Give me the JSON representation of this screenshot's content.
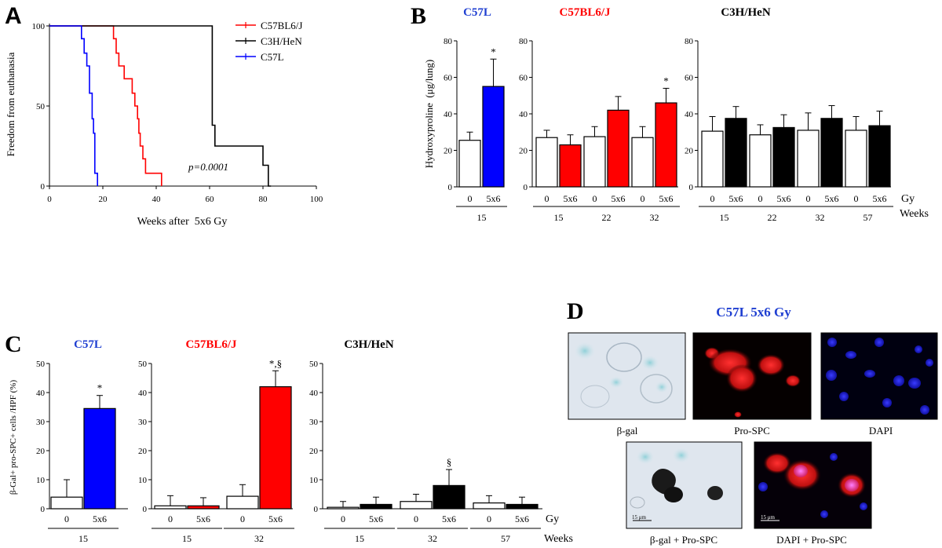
{
  "colors": {
    "blue": "#0000ff",
    "red": "#ff0000",
    "black": "#000000",
    "panel_title_blue": "#1f3fd1"
  },
  "panel_labels": {
    "A": "A",
    "B": "B",
    "C": "C",
    "D": "D"
  },
  "common": {
    "star": "*",
    "star_section": "* ,§",
    "section": "§",
    "gy": "Gy",
    "weeks": "Weeks",
    "dose0": "0",
    "dose5": "5x6"
  },
  "chart_data": [
    {
      "id": "A",
      "type": "line",
      "subtype": "kaplan-meier",
      "xlabel": "Weeks after  5x6 Gy",
      "ylabel": "Freedom from euthanasia",
      "xlim": [
        0,
        100
      ],
      "ylim": [
        0,
        100
      ],
      "xticks": [
        "0",
        "20",
        "40",
        "60",
        "80",
        "100"
      ],
      "yticks": [
        "0",
        "50",
        "100"
      ],
      "annotation": "p=0.0001",
      "legend": "top-right",
      "series": [
        {
          "name": "C57BL6/J",
          "color": "#ff0000",
          "points": [
            [
              0,
              100
            ],
            [
              24,
              100
            ],
            [
              24,
              92
            ],
            [
              25,
              92
            ],
            [
              25,
              83
            ],
            [
              26,
              83
            ],
            [
              26,
              75
            ],
            [
              28,
              75
            ],
            [
              28,
              67
            ],
            [
              31,
              67
            ],
            [
              31,
              58
            ],
            [
              32,
              58
            ],
            [
              32,
              50
            ],
            [
              33,
              50
            ],
            [
              33,
              42
            ],
            [
              33.5,
              42
            ],
            [
              33.5,
              33
            ],
            [
              34,
              33
            ],
            [
              34,
              25
            ],
            [
              35,
              25
            ],
            [
              35,
              17
            ],
            [
              36,
              17
            ],
            [
              36,
              8
            ],
            [
              42,
              8
            ],
            [
              42,
              0
            ]
          ]
        },
        {
          "name": "C3H/HeN",
          "color": "#000000",
          "points": [
            [
              0,
              100
            ],
            [
              61,
              100
            ],
            [
              61,
              38
            ],
            [
              62,
              38
            ],
            [
              62,
              25
            ],
            [
              80,
              25
            ],
            [
              80,
              13
            ],
            [
              82,
              13
            ],
            [
              82,
              0
            ],
            [
              83,
              0
            ]
          ]
        },
        {
          "name": "C57L",
          "color": "#0000ff",
          "points": [
            [
              0,
              100
            ],
            [
              12,
              100
            ],
            [
              12,
              92
            ],
            [
              13,
              92
            ],
            [
              13,
              83
            ],
            [
              14,
              83
            ],
            [
              14,
              75
            ],
            [
              15,
              75
            ],
            [
              15,
              58
            ],
            [
              16,
              58
            ],
            [
              16,
              42
            ],
            [
              16.5,
              42
            ],
            [
              16.5,
              33
            ],
            [
              17,
              33
            ],
            [
              17,
              8
            ],
            [
              18,
              8
            ],
            [
              18,
              0
            ]
          ]
        }
      ]
    },
    {
      "id": "B",
      "type": "bar",
      "ylabel": "Hydroxyproline  (μg/lung)",
      "ylim": [
        0,
        80
      ],
      "yticks": [
        "0",
        "20",
        "40",
        "60",
        "80"
      ],
      "groups": [
        {
          "title": "C57L",
          "title_color": "blue",
          "fill": "#0000ff",
          "weeks": [
            "15"
          ],
          "values": [
            [
              25.5,
              55
            ]
          ],
          "errors": [
            [
              4.5,
              15
            ]
          ],
          "marks": [
            [
              "",
              "*"
            ]
          ]
        },
        {
          "title": "C57BL6/J",
          "title_color": "red",
          "fill": "#ff0000",
          "weeks": [
            "15",
            "22",
            "32"
          ],
          "values": [
            [
              27,
              23
            ],
            [
              27.5,
              42
            ],
            [
              27,
              46
            ]
          ],
          "errors": [
            [
              4,
              5.5
            ],
            [
              5.5,
              7.5
            ],
            [
              6,
              8
            ]
          ],
          "marks": [
            [
              "",
              ""
            ],
            [
              "",
              ""
            ],
            [
              "",
              "*"
            ]
          ]
        },
        {
          "title": "C3H/HeN",
          "title_color": "black",
          "fill": "#000000",
          "weeks": [
            "15",
            "22",
            "32",
            "57"
          ],
          "values": [
            [
              30.5,
              37.5
            ],
            [
              28.5,
              32.5
            ],
            [
              31,
              37.5
            ],
            [
              31,
              33.5
            ]
          ],
          "errors": [
            [
              8,
              6.5
            ],
            [
              5.5,
              7
            ],
            [
              9.5,
              7
            ],
            [
              7.5,
              8
            ]
          ],
          "marks": [
            [
              "",
              ""
            ],
            [
              "",
              ""
            ],
            [
              "",
              ""
            ],
            [
              "",
              ""
            ]
          ]
        }
      ]
    },
    {
      "id": "C",
      "type": "bar",
      "ylabel": "β-Gal+ pro-SPC+ cells /HPF (%)",
      "ylim": [
        0,
        50
      ],
      "yticks": [
        "0",
        "10",
        "20",
        "30",
        "40",
        "50"
      ],
      "groups": [
        {
          "title": "C57L",
          "title_color": "blue",
          "fill": "#0000ff",
          "weeks": [
            "15"
          ],
          "values": [
            [
              4,
              34.5
            ]
          ],
          "errors": [
            [
              6,
              4.5
            ]
          ],
          "marks": [
            [
              "",
              "*"
            ]
          ]
        },
        {
          "title": "C57BL6/J",
          "title_color": "red",
          "fill": "#ff0000",
          "weeks": [
            "15",
            "32"
          ],
          "values": [
            [
              1,
              1
            ],
            [
              4.3,
              42
            ]
          ],
          "errors": [
            [
              3.5,
              2.8
            ],
            [
              4,
              5.5
            ]
          ],
          "marks": [
            [
              "",
              ""
            ],
            [
              "",
              "*,§"
            ]
          ]
        },
        {
          "title": "C3H/HeN",
          "title_color": "black",
          "fill": "#000000",
          "weeks": [
            "15",
            "32",
            "57"
          ],
          "values": [
            [
              0.5,
              1.5
            ],
            [
              2.5,
              8
            ],
            [
              2,
              1.5
            ]
          ],
          "errors": [
            [
              2,
              2.5
            ],
            [
              2.5,
              5.5
            ],
            [
              2.5,
              2.5
            ]
          ],
          "marks": [
            [
              "",
              ""
            ],
            [
              "",
              "§"
            ],
            [
              "",
              ""
            ]
          ]
        }
      ]
    }
  ],
  "panelD": {
    "title": "C57L 5x6 Gy",
    "images": [
      {
        "caption": "β-gal",
        "scale": ""
      },
      {
        "caption": "Pro-SPC",
        "scale": ""
      },
      {
        "caption": "DAPI",
        "scale": ""
      },
      {
        "caption": "β-gal + Pro-SPC",
        "scale": "15 μm"
      },
      {
        "caption": "DAPI + Pro-SPC",
        "scale": "15 μm"
      }
    ]
  }
}
